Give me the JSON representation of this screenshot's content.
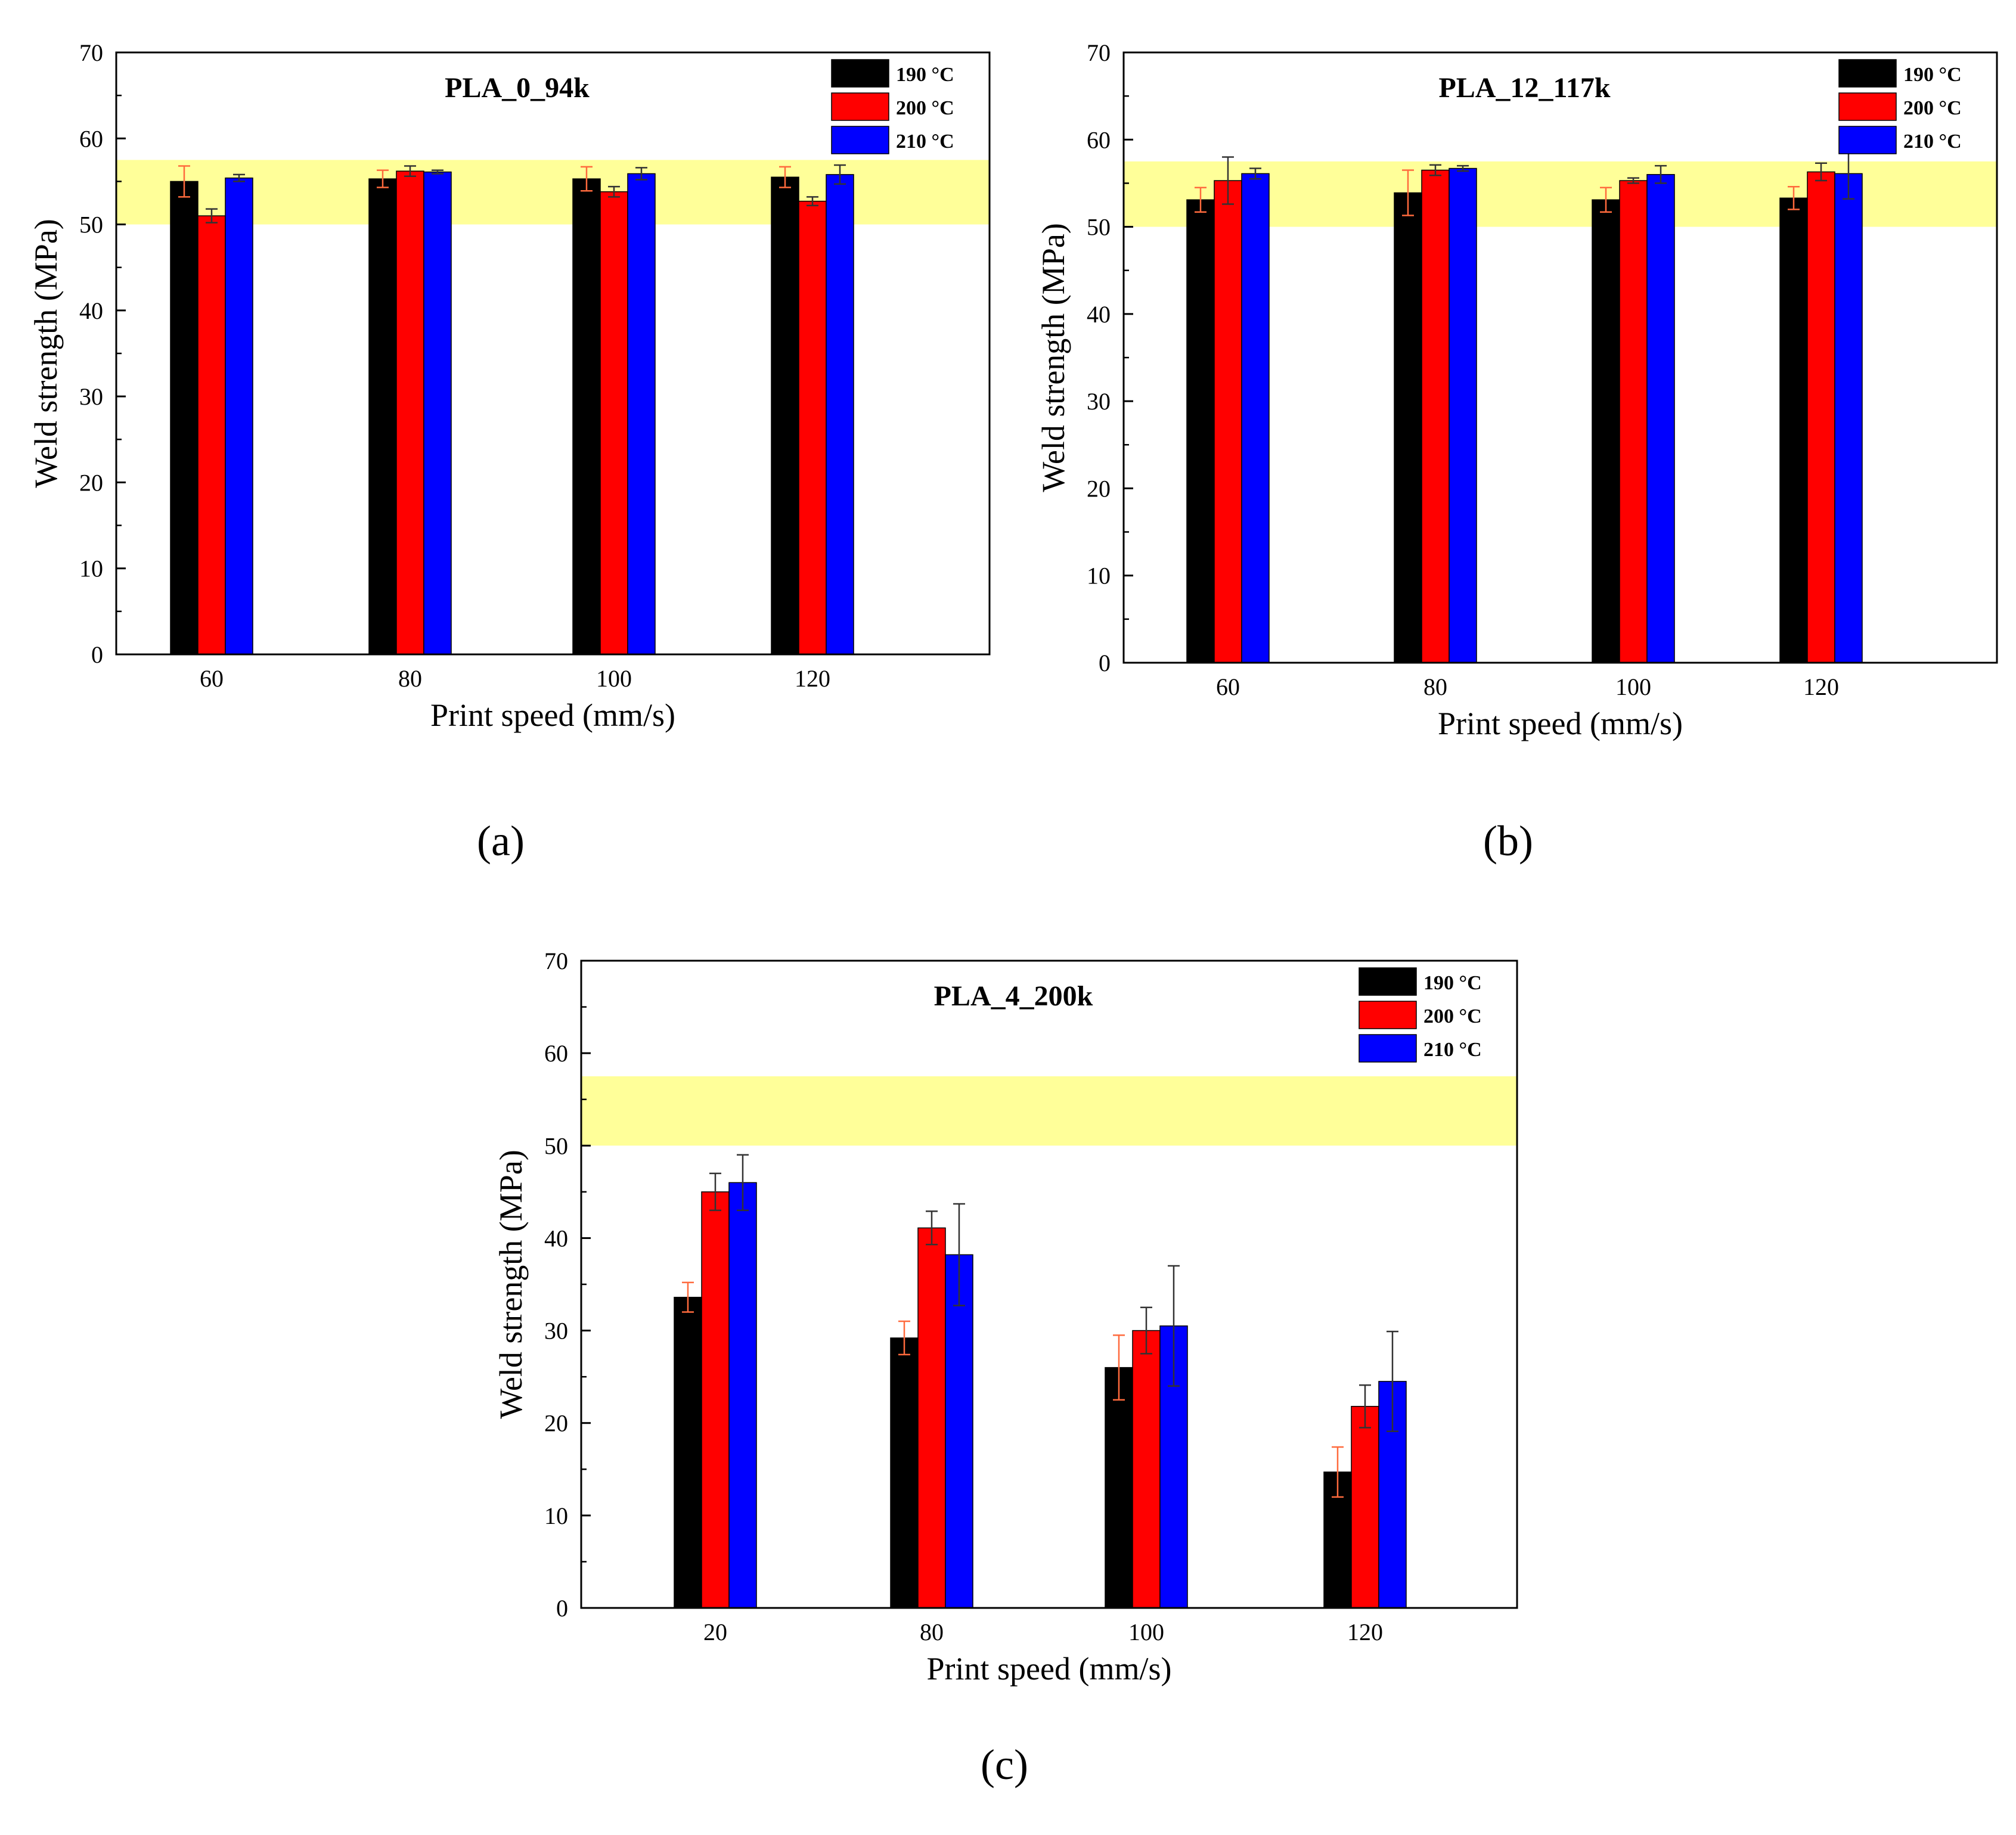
{
  "figure": {
    "colors": {
      "t190": "#000000",
      "t200": "#ff0000",
      "t210": "#0000ff",
      "band": "#ffff99",
      "errorbar_190": "#ff6a3d",
      "errorbar_other": "#333333"
    }
  },
  "chart_data": [
    {
      "type": "bar",
      "panel_label": "(a)",
      "title": "PLA_0_94k",
      "xlabel": "Print speed (mm/s)",
      "ylabel": "Weld strength (MPa)",
      "ylim": [
        0,
        70
      ],
      "yticks": [
        "0",
        "10",
        "20",
        "30",
        "40",
        "50",
        "60",
        "70"
      ],
      "categories": [
        "60",
        "80",
        "100",
        "120"
      ],
      "band": [
        50,
        57.5
      ],
      "legend": [
        "190 °C",
        "200 °C",
        "210 °C"
      ],
      "series": [
        {
          "name": "190 °C",
          "values": [
            55.0,
            55.3,
            55.3,
            55.5
          ],
          "errors": [
            1.8,
            1.0,
            1.4,
            1.2
          ]
        },
        {
          "name": "200 °C",
          "values": [
            51.0,
            56.2,
            53.8,
            52.7
          ],
          "errors": [
            0.8,
            0.6,
            0.6,
            0.5
          ]
        },
        {
          "name": "210 °C",
          "values": [
            55.4,
            56.1,
            55.9,
            55.8
          ],
          "errors": [
            0.4,
            0.2,
            0.7,
            1.1
          ]
        }
      ]
    },
    {
      "type": "bar",
      "panel_label": "(b)",
      "title": "PLA_12_117k",
      "xlabel": "Print speed (mm/s)",
      "ylabel": "Weld strength (MPa)",
      "ylim": [
        0,
        70
      ],
      "yticks": [
        "0",
        "10",
        "20",
        "30",
        "40",
        "50",
        "60",
        "70"
      ],
      "categories": [
        "60",
        "80",
        "100",
        "120"
      ],
      "band": [
        50,
        57.5
      ],
      "legend": [
        "190 °C",
        "200 °C",
        "210 °C"
      ],
      "series": [
        {
          "name": "190 °C",
          "values": [
            53.1,
            53.9,
            53.1,
            53.3
          ],
          "errors": [
            1.4,
            2.6,
            1.4,
            1.3
          ]
        },
        {
          "name": "200 °C",
          "values": [
            55.3,
            56.5,
            55.3,
            56.3
          ],
          "errors": [
            2.7,
            0.6,
            0.3,
            1.0
          ]
        },
        {
          "name": "210 °C",
          "values": [
            56.1,
            56.7,
            56.0,
            56.1
          ],
          "errors": [
            0.6,
            0.3,
            1.0,
            2.9
          ]
        }
      ]
    },
    {
      "type": "bar",
      "panel_label": "(c)",
      "title": "PLA_4_200k",
      "xlabel": "Print speed (mm/s)",
      "ylabel": "Weld strength (MPa)",
      "ylim": [
        0,
        70
      ],
      "yticks": [
        "0",
        "10",
        "20",
        "30",
        "40",
        "50",
        "60",
        "70"
      ],
      "categories": [
        "20",
        "80",
        "100",
        "120"
      ],
      "band": [
        50,
        57.5
      ],
      "legend": [
        "190 °C",
        "200 °C",
        "210 °C"
      ],
      "series": [
        {
          "name": "190 °C",
          "values": [
            33.6,
            29.2,
            26.0,
            14.7
          ],
          "errors": [
            1.6,
            1.8,
            3.5,
            2.7
          ]
        },
        {
          "name": "200 °C",
          "values": [
            45.0,
            41.1,
            30.0,
            21.8
          ],
          "errors": [
            2.0,
            1.8,
            2.5,
            2.3
          ]
        },
        {
          "name": "210 °C",
          "values": [
            46.0,
            38.2,
            30.5,
            24.5
          ],
          "errors": [
            3.0,
            5.5,
            6.5,
            5.4
          ]
        }
      ]
    }
  ]
}
